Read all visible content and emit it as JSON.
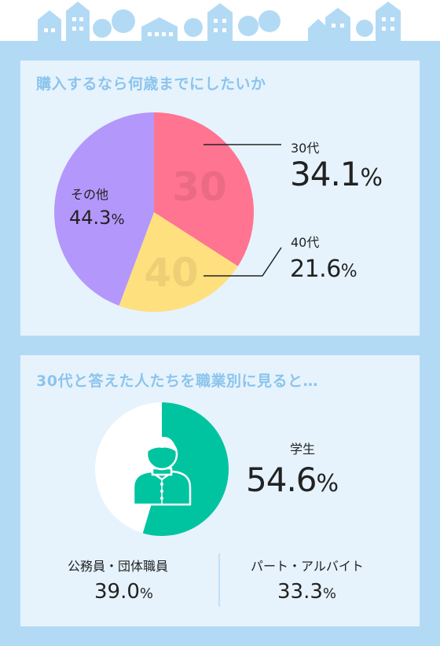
{
  "panel1": {
    "title": "購入するなら何歳までにしたいか",
    "labels": {
      "s30_name": "30代",
      "s30_value": "34.1",
      "s30_watermark": "30",
      "s40_name": "40代",
      "s40_value": "21.6",
      "s40_watermark": "40",
      "other_name": "その他",
      "other_value": "44.3",
      "percent_sign": "%"
    }
  },
  "panel2": {
    "title": "30代と答えた人たちを職業別に見ると…",
    "student_label": "学生",
    "student_value": "54.6",
    "civil_label": "公務員・団体職員",
    "civil_value": "39.0",
    "part_label": "パート・アルバイト",
    "part_value": "33.3",
    "percent_sign": "%"
  },
  "colors": {
    "frame": "#b3daf5",
    "panel": "#e6f3fd",
    "title": "#8cc4ec",
    "pink": "#ff7491",
    "yellow": "#ffe07f",
    "purple": "#b497fb",
    "teal": "#00c4a0"
  },
  "chart_data": [
    {
      "type": "pie",
      "title": "購入するなら何歳までにしたいか",
      "categories": [
        "30代",
        "40代",
        "その他"
      ],
      "values": [
        34.1,
        21.6,
        44.3
      ],
      "colors": [
        "#ff7491",
        "#ffe07f",
        "#b497fb"
      ],
      "unit": "%"
    },
    {
      "type": "pie",
      "title": "30代と答えた人たちを職業別に見ると…",
      "categories": [
        "学生",
        "公務員・団体職員",
        "パート・アルバイト"
      ],
      "values": [
        54.6,
        39.0,
        33.3
      ],
      "colors": [
        "#00c4a0",
        "#ffffff"
      ],
      "unit": "%"
    }
  ]
}
